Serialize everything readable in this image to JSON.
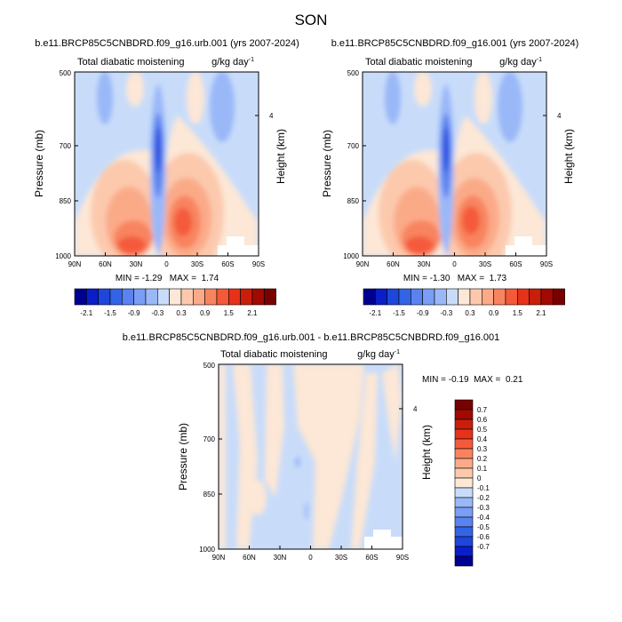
{
  "figure_title": "SON",
  "colors": {
    "left": [
      "#000090",
      "#0a1ec8",
      "#1e46dc",
      "#3264e6",
      "#5a82f0",
      "#7a9ef5",
      "#9ab8f8",
      "#c8dcfa"
    ],
    "right": [
      "#fde7d6",
      "#fcc9ad",
      "#fbaa88",
      "#f8845f",
      "#f45a3a",
      "#e63218",
      "#c81e0a",
      "#a00a00",
      "#780000"
    ]
  },
  "chart_data": [
    {
      "type": "heatmap",
      "title": "b.e11.BRCP85C5CNBDRD.f09_g16.urb.001 (yrs 2007-2024)",
      "variable_label": "Total diabatic moistening",
      "units_label": "g/kg day",
      "units_exp": "-1",
      "ylabel": "Pressure (mb)",
      "right_label": "Height (km)",
      "x_ticks": [
        "90N",
        "60N",
        "30N",
        "0",
        "30S",
        "60S",
        "90S"
      ],
      "y_ticks": [
        500,
        700,
        850,
        1000
      ],
      "right_ticks": [
        4
      ],
      "min_label": "MIN =",
      "min_value": "-1.29",
      "max_label": "MAX =",
      "max_value": "1.74"
    },
    {
      "type": "heatmap",
      "title": "b.e11.BRCP85C5CNBDRD.f09_g16.001 (yrs 2007-2024)",
      "variable_label": "Total diabatic moistening",
      "units_label": "g/kg day",
      "units_exp": "-1",
      "ylabel": "Pressure (mb)",
      "right_label": "Height (km)",
      "x_ticks": [
        "90N",
        "60N",
        "30N",
        "0",
        "30S",
        "60S",
        "90S"
      ],
      "y_ticks": [
        500,
        700,
        850,
        1000
      ],
      "right_ticks": [
        4
      ],
      "min_label": "MIN =",
      "min_value": "-1.30",
      "max_label": "MAX =",
      "max_value": "1.73"
    },
    {
      "type": "heatmap",
      "title": "b.e11.BRCP85C5CNBDRD.f09_g16.urb.001 - b.e11.BRCP85C5CNBDRD.f09_g16.001",
      "variable_label": "Total diabatic moistening",
      "units_label": "g/kg day",
      "units_exp": "-1",
      "ylabel": "Pressure (mb)",
      "right_label": "Height (km)",
      "x_ticks": [
        "90N",
        "60N",
        "30N",
        "0",
        "30S",
        "60S",
        "90S"
      ],
      "y_ticks": [
        500,
        700,
        850,
        1000
      ],
      "right_ticks": [
        4
      ],
      "min_label": "MIN =",
      "min_value": "-0.19",
      "max_label": "MAX =",
      "max_value": "0.21"
    }
  ],
  "colorbar_top": {
    "labels": [
      "-2.1",
      "-1.5",
      "-0.9",
      "-0.3",
      "0.3",
      "0.9",
      "1.5",
      "2.1"
    ]
  },
  "colorbar_diff": {
    "labels": [
      "0.7",
      "0.6",
      "0.5",
      "0.4",
      "0.3",
      "0.2",
      "0.1",
      "0",
      "-0.1",
      "-0.2",
      "-0.3",
      "-0.4",
      "-0.5",
      "-0.6",
      "-0.7"
    ]
  }
}
